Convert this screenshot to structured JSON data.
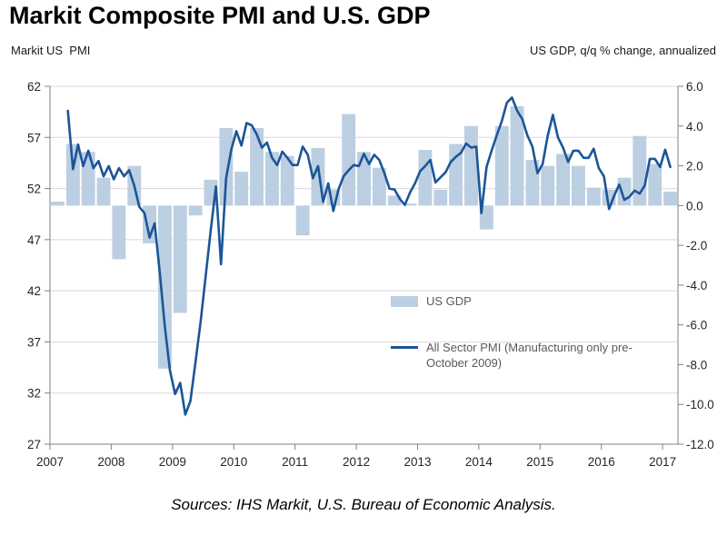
{
  "title": "Markit Composite PMI and U.S. GDP",
  "left_axis_header": "Markit US  PMI",
  "right_axis_header": "US GDP, q/q % change, annualized",
  "source_note": "Sources: IHS Markit, U.S. Bureau of Economic Analysis.",
  "colors": {
    "gdp_bar": "#bccfe2",
    "pmi_line": "#1c5598",
    "gridline": "#d9d9d9",
    "axis": "#808080",
    "tick_text": "#262626",
    "legend_text": "#595959"
  },
  "chart_data": {
    "type": "line+bar",
    "title": "Markit Composite PMI and U.S. GDP",
    "legend": {
      "gdp_label": "US GDP",
      "pmi_label": "All Sector PMI (Manufacturing only pre-October 2009)"
    },
    "x_axis": {
      "range": [
        2007,
        2017.25
      ],
      "ticks": [
        2007,
        2008,
        2009,
        2010,
        2011,
        2012,
        2013,
        2014,
        2015,
        2016,
        2017
      ]
    },
    "left_axis": {
      "label": "Markit US PMI",
      "range": [
        27,
        62
      ],
      "ticks": [
        62,
        57,
        52,
        47,
        42,
        37,
        32,
        27
      ]
    },
    "right_axis": {
      "label": "US GDP, q/q % change, annualized",
      "range": [
        -12,
        6
      ],
      "ticks": [
        6,
        4,
        2,
        0,
        -2,
        -4,
        -6,
        -8,
        -10,
        -12
      ],
      "decimals": 1
    },
    "gdp_bars": {
      "series": "US GDP (q/q % change, annualized)",
      "frequency": "quarterly",
      "start": "2007 Q1",
      "start_year_decimal": 2007.125,
      "step_years": 0.25,
      "values": [
        0.2,
        3.1,
        2.7,
        1.4,
        -2.7,
        2.0,
        -1.9,
        -8.2,
        -5.4,
        -0.5,
        1.3,
        3.9,
        1.7,
        3.9,
        2.7,
        2.5,
        -1.5,
        2.9,
        0.8,
        4.6,
        2.7,
        1.9,
        0.5,
        0.1,
        2.8,
        0.8,
        3.1,
        4.0,
        -1.2,
        4.0,
        5.0,
        2.3,
        2.0,
        2.6,
        2.0,
        0.9,
        0.8,
        1.4,
        3.5,
        2.1,
        0.7
      ]
    },
    "pmi_line": {
      "series": "All Sector PMI (Manufacturing only pre-October 2009)",
      "frequency": "monthly",
      "start": "2007 Apr",
      "start_year_decimal": 2007.292,
      "step_years": 0.0833333,
      "values": [
        59.6,
        53.9,
        56.3,
        54.2,
        55.7,
        54.0,
        54.7,
        53.2,
        54.2,
        52.9,
        54.0,
        53.2,
        53.8,
        52.3,
        50.2,
        49.6,
        47.2,
        48.6,
        43.8,
        38.5,
        34.2,
        31.9,
        33.0,
        29.9,
        31.2,
        35.0,
        39.0,
        43.5,
        48.0,
        52.2,
        44.6,
        53.0,
        55.8,
        57.6,
        56.2,
        58.4,
        58.2,
        57.3,
        56.0,
        56.5,
        55.0,
        54.3,
        55.6,
        55.0,
        54.3,
        54.3,
        56.1,
        55.3,
        53.0,
        54.2,
        50.7,
        52.5,
        49.8,
        51.9,
        53.2,
        53.8,
        54.3,
        54.2,
        55.4,
        54.4,
        55.3,
        54.8,
        53.5,
        52.0,
        51.9,
        51.0,
        50.4,
        51.6,
        52.5,
        53.7,
        54.2,
        54.8,
        52.6,
        53.1,
        53.6,
        54.6,
        55.1,
        55.5,
        56.4,
        56.0,
        56.1,
        49.6,
        54.1,
        55.7,
        57.2,
        58.6,
        60.4,
        60.9,
        59.6,
        58.8,
        57.2,
        56.1,
        53.5,
        54.4,
        57.2,
        59.2,
        57.0,
        56.0,
        54.6,
        55.7,
        55.7,
        55.0,
        55.0,
        55.9,
        54.0,
        53.2,
        50.0,
        51.3,
        52.4,
        50.9,
        51.2,
        51.8,
        51.5,
        52.3,
        54.9,
        54.9,
        54.1,
        55.8,
        54.1
      ]
    }
  }
}
